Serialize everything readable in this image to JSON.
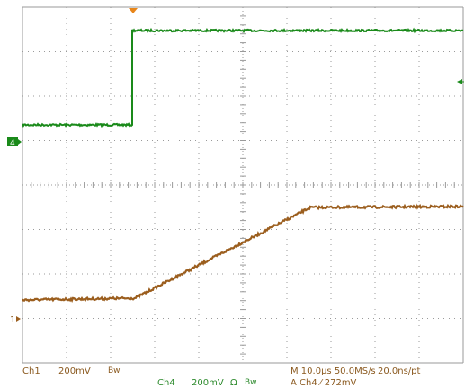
{
  "colors": {
    "ch1": "#9b5e1e",
    "ch4": "#1a8a1a",
    "trigger": "#e8861a",
    "grid": "#9a9a9a",
    "background": "#ffffff"
  },
  "markers": {
    "ch4_ground": "4",
    "ch1_ground": "1"
  },
  "readout": {
    "ch1_label": "Ch1",
    "ch1_scale": "200mV",
    "ch1_bw": "Bw",
    "ch4_label": "Ch4",
    "ch4_scale": "200mV",
    "ch4_ohm": "Ω",
    "ch4_bw": "Bw",
    "horizontal": "M 10.0µs 50.0MS/s",
    "resolution": "20.0ns/pt",
    "trigger": "A  Ch4  ⁄  272mV"
  },
  "icons": {
    "trigger_position": "trigger-position-arrow-icon",
    "trigger_level": "trigger-level-arrow-icon"
  }
}
